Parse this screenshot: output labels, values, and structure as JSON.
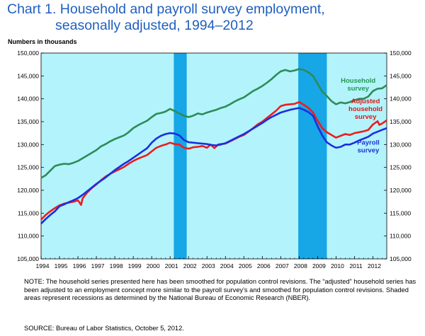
{
  "title_line1": "Chart 1.  Household and payroll survey employment,",
  "title_line2": "seasonally adjusted, 1994–2012",
  "units_label": "Numbers in thousands",
  "note": "NOTE: The household series presented here has been smoothed for population control revisions. The “adjusted” household series has been adjusted to an employment concept more similar to the payroll survey’s and smoothed for population control revisions.  Shaded areas represent recessions as determined by the National Bureau of Economic Research (NBER).",
  "source": "SOURCE:  Bureau of Labor Statistics, October 5, 2012.",
  "chart_data": {
    "type": "line",
    "title": "Household and payroll survey employment, seasonally adjusted, 1994–2012",
    "ylabel": "Numbers in thousands",
    "ylim": [
      105000,
      150000
    ],
    "yticks": [
      105000,
      110000,
      115000,
      120000,
      125000,
      130000,
      135000,
      140000,
      145000,
      150000
    ],
    "yticklabels": [
      "105,000",
      "110,000",
      "115,000",
      "120,000",
      "125,000",
      "130,000",
      "135,000",
      "140,000",
      "145,000",
      "150,000"
    ],
    "xlim": [
      1994.0,
      2012.75
    ],
    "xticklabels": [
      "1994",
      "1995",
      "1996",
      "1997",
      "1998",
      "1999",
      "2000",
      "2001",
      "2002",
      "2003",
      "2004",
      "2005",
      "2006",
      "2007",
      "2008",
      "2009",
      "2010",
      "2011",
      "2012"
    ],
    "grid": false,
    "plot_background": "#b3f3fb",
    "recessions": [
      {
        "start": 2001.2,
        "end": 2001.9,
        "color": "#17a6e6"
      },
      {
        "start": 2007.95,
        "end": 2009.5,
        "color": "#17a6e6"
      }
    ],
    "series": [
      {
        "name": "Household survey",
        "label_lines": [
          "Household",
          "survey"
        ],
        "color": "#2e8b57",
        "label_color": "#229954",
        "points": [
          [
            1994.0,
            122700
          ],
          [
            1994.25,
            123300
          ],
          [
            1994.5,
            124300
          ],
          [
            1994.75,
            125300
          ],
          [
            1995.0,
            125600
          ],
          [
            1995.25,
            125800
          ],
          [
            1995.5,
            125700
          ],
          [
            1995.75,
            126000
          ],
          [
            1996.0,
            126400
          ],
          [
            1996.25,
            127000
          ],
          [
            1996.5,
            127600
          ],
          [
            1996.75,
            128200
          ],
          [
            1997.0,
            128800
          ],
          [
            1997.25,
            129600
          ],
          [
            1997.5,
            130100
          ],
          [
            1997.75,
            130700
          ],
          [
            1998.0,
            131200
          ],
          [
            1998.25,
            131600
          ],
          [
            1998.5,
            132000
          ],
          [
            1998.75,
            132700
          ],
          [
            1999.0,
            133600
          ],
          [
            1999.25,
            134200
          ],
          [
            1999.5,
            134700
          ],
          [
            1999.75,
            135200
          ],
          [
            2000.0,
            136000
          ],
          [
            2000.25,
            136700
          ],
          [
            2000.5,
            136900
          ],
          [
            2000.75,
            137200
          ],
          [
            2001.0,
            137800
          ],
          [
            2001.25,
            137300
          ],
          [
            2001.5,
            136800
          ],
          [
            2001.75,
            136300
          ],
          [
            2002.0,
            136000
          ],
          [
            2002.25,
            136300
          ],
          [
            2002.5,
            136800
          ],
          [
            2002.75,
            136600
          ],
          [
            2003.0,
            137000
          ],
          [
            2003.25,
            137300
          ],
          [
            2003.5,
            137600
          ],
          [
            2003.75,
            138000
          ],
          [
            2004.0,
            138300
          ],
          [
            2004.25,
            138800
          ],
          [
            2004.5,
            139400
          ],
          [
            2004.75,
            139900
          ],
          [
            2005.0,
            140300
          ],
          [
            2005.25,
            141000
          ],
          [
            2005.5,
            141700
          ],
          [
            2005.75,
            142200
          ],
          [
            2006.0,
            142800
          ],
          [
            2006.25,
            143500
          ],
          [
            2006.5,
            144300
          ],
          [
            2006.75,
            145200
          ],
          [
            2007.0,
            146000
          ],
          [
            2007.25,
            146300
          ],
          [
            2007.5,
            146000
          ],
          [
            2007.75,
            146200
          ],
          [
            2008.0,
            146500
          ],
          [
            2008.25,
            146300
          ],
          [
            2008.5,
            145800
          ],
          [
            2008.75,
            145000
          ],
          [
            2009.0,
            143300
          ],
          [
            2009.25,
            141600
          ],
          [
            2009.5,
            140600
          ],
          [
            2009.75,
            139500
          ],
          [
            2010.0,
            138800
          ],
          [
            2010.25,
            139200
          ],
          [
            2010.5,
            139000
          ],
          [
            2010.75,
            139300
          ],
          [
            2011.0,
            139700
          ],
          [
            2011.25,
            140000
          ],
          [
            2011.5,
            140000
          ],
          [
            2011.75,
            140500
          ],
          [
            2012.0,
            141700
          ],
          [
            2012.25,
            142200
          ],
          [
            2012.5,
            142300
          ],
          [
            2012.75,
            143000
          ]
        ]
      },
      {
        "name": "Adjusted household survey",
        "label_lines": [
          "Adjusted",
          "household",
          "survey"
        ],
        "color": "#ee1c1c",
        "label_color": "#e41515",
        "points": [
          [
            1994.0,
            113600
          ],
          [
            1994.25,
            114600
          ],
          [
            1994.5,
            115400
          ],
          [
            1994.75,
            116100
          ],
          [
            1995.0,
            116700
          ],
          [
            1995.25,
            117100
          ],
          [
            1995.5,
            117300
          ],
          [
            1995.75,
            117500
          ],
          [
            1996.0,
            117800
          ],
          [
            1996.17,
            116800
          ],
          [
            1996.25,
            118200
          ],
          [
            1996.5,
            119500
          ],
          [
            1996.75,
            120500
          ],
          [
            1997.0,
            121300
          ],
          [
            1997.25,
            122200
          ],
          [
            1997.5,
            123000
          ],
          [
            1997.75,
            123600
          ],
          [
            1998.0,
            124100
          ],
          [
            1998.25,
            124600
          ],
          [
            1998.5,
            125100
          ],
          [
            1998.75,
            125800
          ],
          [
            1999.0,
            126400
          ],
          [
            1999.25,
            126900
          ],
          [
            1999.5,
            127300
          ],
          [
            1999.75,
            127700
          ],
          [
            2000.0,
            128500
          ],
          [
            2000.25,
            129300
          ],
          [
            2000.5,
            129700
          ],
          [
            2000.75,
            130000
          ],
          [
            2001.0,
            130400
          ],
          [
            2001.25,
            130100
          ],
          [
            2001.5,
            130000
          ],
          [
            2001.75,
            129300
          ],
          [
            2002.0,
            129100
          ],
          [
            2002.25,
            129400
          ],
          [
            2002.5,
            129500
          ],
          [
            2002.75,
            129700
          ],
          [
            2003.0,
            129300
          ],
          [
            2003.2,
            130000
          ],
          [
            2003.4,
            129200
          ],
          [
            2003.6,
            130000
          ],
          [
            2003.75,
            130100
          ],
          [
            2004.0,
            130200
          ],
          [
            2004.25,
            130700
          ],
          [
            2004.5,
            131200
          ],
          [
            2004.75,
            131700
          ],
          [
            2005.0,
            132100
          ],
          [
            2005.25,
            132800
          ],
          [
            2005.5,
            133600
          ],
          [
            2005.75,
            134400
          ],
          [
            2006.0,
            135000
          ],
          [
            2006.25,
            135800
          ],
          [
            2006.5,
            136600
          ],
          [
            2006.75,
            137400
          ],
          [
            2007.0,
            138400
          ],
          [
            2007.25,
            138700
          ],
          [
            2007.5,
            138800
          ],
          [
            2007.75,
            138900
          ],
          [
            2008.0,
            139300
          ],
          [
            2008.25,
            138700
          ],
          [
            2008.5,
            138000
          ],
          [
            2008.75,
            137000
          ],
          [
            2009.0,
            135200
          ],
          [
            2009.25,
            133600
          ],
          [
            2009.5,
            132700
          ],
          [
            2009.75,
            132100
          ],
          [
            2010.0,
            131500
          ],
          [
            2010.25,
            131900
          ],
          [
            2010.5,
            132300
          ],
          [
            2010.75,
            132100
          ],
          [
            2011.0,
            132500
          ],
          [
            2011.25,
            132700
          ],
          [
            2011.5,
            132900
          ],
          [
            2011.75,
            133200
          ],
          [
            2012.0,
            134400
          ],
          [
            2012.25,
            135100
          ],
          [
            2012.35,
            134300
          ],
          [
            2012.5,
            134600
          ],
          [
            2012.75,
            135300
          ]
        ]
      },
      {
        "name": "Payroll survey",
        "label_lines": [
          "Payroll",
          "survey"
        ],
        "color": "#1a2fe0",
        "label_color": "#1a2fd6",
        "points": [
          [
            1994.0,
            112700
          ],
          [
            1994.25,
            113700
          ],
          [
            1994.5,
            114600
          ],
          [
            1994.75,
            115400
          ],
          [
            1995.0,
            116500
          ],
          [
            1995.25,
            116900
          ],
          [
            1995.5,
            117400
          ],
          [
            1995.75,
            117800
          ],
          [
            1996.0,
            118300
          ],
          [
            1996.25,
            119000
          ],
          [
            1996.5,
            119800
          ],
          [
            1996.75,
            120600
          ],
          [
            1997.0,
            121400
          ],
          [
            1997.25,
            122100
          ],
          [
            1997.5,
            122800
          ],
          [
            1997.75,
            123600
          ],
          [
            1998.0,
            124400
          ],
          [
            1998.25,
            125100
          ],
          [
            1998.5,
            125800
          ],
          [
            1998.75,
            126400
          ],
          [
            1999.0,
            127100
          ],
          [
            1999.25,
            127800
          ],
          [
            1999.5,
            128500
          ],
          [
            1999.75,
            129200
          ],
          [
            2000.0,
            130400
          ],
          [
            2000.25,
            131300
          ],
          [
            2000.5,
            131900
          ],
          [
            2000.75,
            132300
          ],
          [
            2001.0,
            132500
          ],
          [
            2001.25,
            132400
          ],
          [
            2001.5,
            132000
          ],
          [
            2001.75,
            131000
          ],
          [
            2002.0,
            130500
          ],
          [
            2002.25,
            130400
          ],
          [
            2002.5,
            130300
          ],
          [
            2002.75,
            130200
          ],
          [
            2003.0,
            130100
          ],
          [
            2003.25,
            129900
          ],
          [
            2003.5,
            129800
          ],
          [
            2003.75,
            130000
          ],
          [
            2004.0,
            130300
          ],
          [
            2004.25,
            130800
          ],
          [
            2004.5,
            131300
          ],
          [
            2004.75,
            131800
          ],
          [
            2005.0,
            132300
          ],
          [
            2005.25,
            132900
          ],
          [
            2005.5,
            133500
          ],
          [
            2005.75,
            134100
          ],
          [
            2006.0,
            134700
          ],
          [
            2006.25,
            135400
          ],
          [
            2006.5,
            136000
          ],
          [
            2006.75,
            136500
          ],
          [
            2007.0,
            137000
          ],
          [
            2007.25,
            137300
          ],
          [
            2007.5,
            137600
          ],
          [
            2007.75,
            137800
          ],
          [
            2008.0,
            138000
          ],
          [
            2008.25,
            137600
          ],
          [
            2008.5,
            137100
          ],
          [
            2008.75,
            136300
          ],
          [
            2009.0,
            134000
          ],
          [
            2009.25,
            132000
          ],
          [
            2009.5,
            130500
          ],
          [
            2009.75,
            129800
          ],
          [
            2010.0,
            129300
          ],
          [
            2010.25,
            129500
          ],
          [
            2010.5,
            130000
          ],
          [
            2010.75,
            130000
          ],
          [
            2011.0,
            130400
          ],
          [
            2011.25,
            130900
          ],
          [
            2011.5,
            131300
          ],
          [
            2011.75,
            131700
          ],
          [
            2012.0,
            132400
          ],
          [
            2012.25,
            132800
          ],
          [
            2012.5,
            133200
          ],
          [
            2012.75,
            133600
          ]
        ]
      }
    ]
  }
}
